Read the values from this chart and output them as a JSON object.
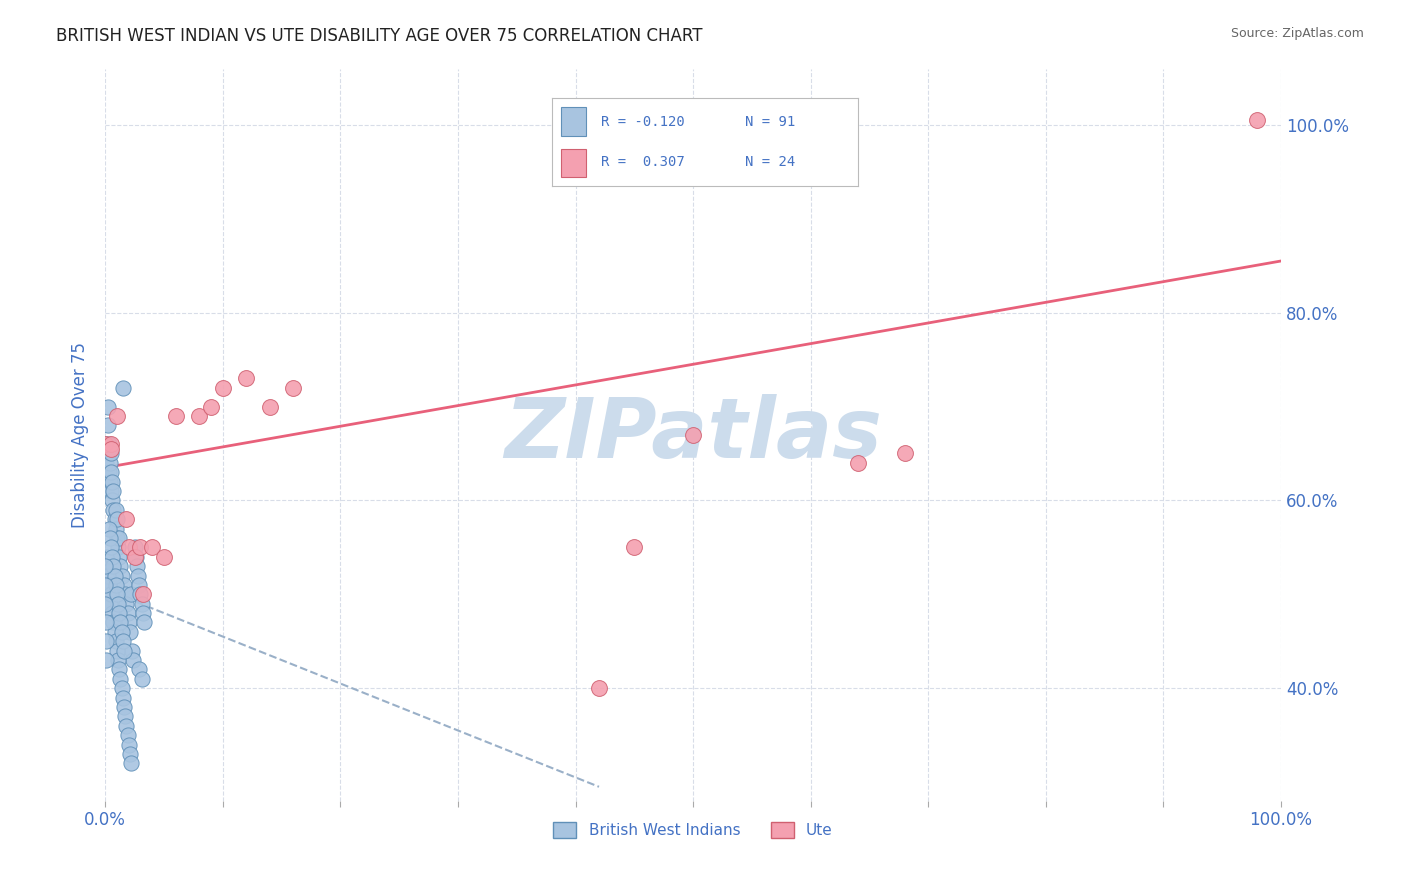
{
  "title": "BRITISH WEST INDIAN VS UTE DISABILITY AGE OVER 75 CORRELATION CHART",
  "source": "Source: ZipAtlas.com",
  "ylabel": "Disability Age Over 75",
  "xlim": [
    0.0,
    1.0
  ],
  "ylim": [
    0.28,
    1.06
  ],
  "ytick_positions": [
    0.4,
    0.6,
    0.8,
    1.0
  ],
  "ytick_labels": [
    "40.0%",
    "60.0%",
    "80.0%",
    "100.0%"
  ],
  "xtick_positions": [
    0.0,
    0.1,
    0.2,
    0.3,
    0.4,
    0.5,
    0.6,
    0.7,
    0.8,
    0.9,
    1.0
  ],
  "xtick_labels_show": {
    "0.0": "0.0%",
    "1.0": "100.0%"
  },
  "scatter_blue_color": "#a8c4e0",
  "scatter_blue_edge": "#6090b8",
  "scatter_pink_color": "#f4a0b0",
  "scatter_pink_edge": "#d06070",
  "trendline_blue_color": "#9ab0c8",
  "trendline_pink_color": "#e8607a",
  "watermark_text": "ZIPatlas",
  "watermark_color": "#ccdcec",
  "background_color": "#ffffff",
  "grid_color": "#d8dde8",
  "axis_color": "#4472c4",
  "legend_r1": "R = -0.120",
  "legend_n1": "N = 91",
  "legend_r2": "R =  0.307",
  "legend_n2": "N = 24",
  "blue_trendline_x": [
    0.0,
    0.42
  ],
  "blue_trendline_y": [
    0.505,
    0.295
  ],
  "pink_trendline_x": [
    0.0,
    1.0
  ],
  "pink_trendline_y": [
    0.635,
    0.855
  ],
  "blue_x": [
    0.001,
    0.001,
    0.002,
    0.002,
    0.003,
    0.003,
    0.003,
    0.004,
    0.004,
    0.005,
    0.005,
    0.005,
    0.006,
    0.006,
    0.007,
    0.007,
    0.008,
    0.009,
    0.009,
    0.01,
    0.01,
    0.011,
    0.012,
    0.012,
    0.013,
    0.014,
    0.015,
    0.016,
    0.017,
    0.018,
    0.019,
    0.02,
    0.021,
    0.022,
    0.023,
    0.024,
    0.025,
    0.026,
    0.027,
    0.028,
    0.029,
    0.03,
    0.031,
    0.032,
    0.033,
    0.001,
    0.001,
    0.002,
    0.002,
    0.003,
    0.004,
    0.005,
    0.006,
    0.007,
    0.008,
    0.009,
    0.01,
    0.011,
    0.012,
    0.013,
    0.014,
    0.015,
    0.016,
    0.017,
    0.018,
    0.019,
    0.02,
    0.021,
    0.022,
    0.003,
    0.004,
    0.005,
    0.006,
    0.007,
    0.008,
    0.009,
    0.01,
    0.011,
    0.012,
    0.013,
    0.014,
    0.015,
    0.016,
    0.0,
    0.0,
    0.0,
    0.001,
    0.001,
    0.001,
    0.029,
    0.031
  ],
  "blue_y": [
    0.66,
    0.64,
    0.68,
    0.7,
    0.63,
    0.65,
    0.66,
    0.62,
    0.64,
    0.61,
    0.63,
    0.65,
    0.6,
    0.62,
    0.59,
    0.61,
    0.58,
    0.57,
    0.59,
    0.56,
    0.58,
    0.55,
    0.54,
    0.56,
    0.53,
    0.52,
    0.72,
    0.51,
    0.5,
    0.49,
    0.48,
    0.47,
    0.46,
    0.5,
    0.44,
    0.43,
    0.55,
    0.54,
    0.53,
    0.52,
    0.51,
    0.5,
    0.49,
    0.48,
    0.47,
    0.52,
    0.54,
    0.5,
    0.52,
    0.51,
    0.49,
    0.5,
    0.48,
    0.47,
    0.46,
    0.45,
    0.44,
    0.43,
    0.42,
    0.41,
    0.4,
    0.39,
    0.38,
    0.37,
    0.36,
    0.35,
    0.34,
    0.33,
    0.32,
    0.57,
    0.56,
    0.55,
    0.54,
    0.53,
    0.52,
    0.51,
    0.5,
    0.49,
    0.48,
    0.47,
    0.46,
    0.45,
    0.44,
    0.53,
    0.51,
    0.49,
    0.47,
    0.45,
    0.43,
    0.42,
    0.41
  ],
  "pink_x": [
    0.0,
    0.005,
    0.005,
    0.01,
    0.018,
    0.02,
    0.025,
    0.03,
    0.032,
    0.04,
    0.05,
    0.06,
    0.08,
    0.09,
    0.1,
    0.12,
    0.14,
    0.16,
    0.42,
    0.45,
    0.5,
    0.64,
    0.68,
    0.98
  ],
  "pink_y": [
    0.66,
    0.66,
    0.655,
    0.69,
    0.58,
    0.55,
    0.54,
    0.55,
    0.5,
    0.55,
    0.54,
    0.69,
    0.69,
    0.7,
    0.72,
    0.73,
    0.7,
    0.72,
    0.4,
    0.55,
    0.67,
    0.64,
    0.65,
    1.005
  ]
}
